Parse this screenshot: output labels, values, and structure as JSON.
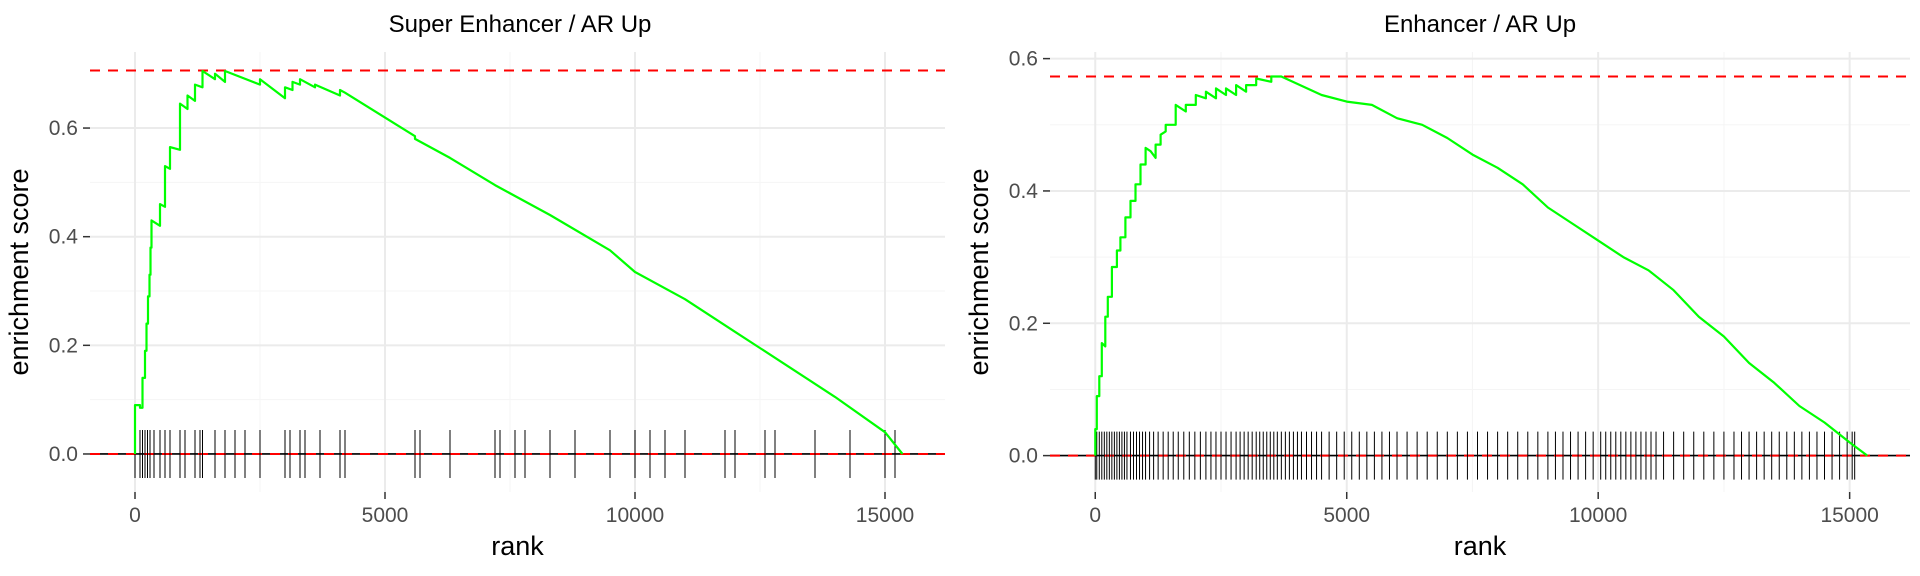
{
  "chart_data": [
    {
      "type": "line",
      "title": "Super Enhancer / AR Up",
      "xlabel": "rank",
      "ylabel": "enrichment score",
      "xlim": [
        -900,
        16200
      ],
      "ylim": [
        -0.07,
        0.74
      ],
      "xticks": [
        0,
        5000,
        10000,
        15000
      ],
      "xtick_labels": [
        "0",
        "5000",
        "10000",
        "15000"
      ],
      "yticks": [
        0.0,
        0.2,
        0.4,
        0.6
      ],
      "ytick_labels": [
        "0.0",
        "0.2",
        "0.4",
        "0.6"
      ],
      "grid": true,
      "max_es_line": 0.706,
      "line_color": "#00ff00",
      "ref_line_color": "#ff0000",
      "series": [
        {
          "points": [
            [
              0,
              0
            ],
            [
              0,
              0.09
            ],
            [
              100,
              0.09
            ],
            [
              100,
              0.085
            ],
            [
              150,
              0.085
            ],
            [
              150,
              0.14
            ],
            [
              200,
              0.14
            ],
            [
              200,
              0.19
            ],
            [
              230,
              0.19
            ],
            [
              230,
              0.24
            ],
            [
              260,
              0.24
            ],
            [
              260,
              0.29
            ],
            [
              290,
              0.29
            ],
            [
              290,
              0.33
            ],
            [
              310,
              0.33
            ],
            [
              310,
              0.38
            ],
            [
              330,
              0.38
            ],
            [
              330,
              0.43
            ],
            [
              500,
              0.42
            ],
            [
              500,
              0.46
            ],
            [
              600,
              0.455
            ],
            [
              600,
              0.53
            ],
            [
              700,
              0.525
            ],
            [
              700,
              0.565
            ],
            [
              900,
              0.56
            ],
            [
              900,
              0.645
            ],
            [
              1050,
              0.635
            ],
            [
              1050,
              0.66
            ],
            [
              1200,
              0.65
            ],
            [
              1200,
              0.68
            ],
            [
              1350,
              0.675
            ],
            [
              1350,
              0.705
            ],
            [
              1600,
              0.69
            ],
            [
              1600,
              0.7
            ],
            [
              1800,
              0.685
            ],
            [
              1800,
              0.705
            ],
            [
              2500,
              0.68
            ],
            [
              2500,
              0.69
            ],
            [
              3000,
              0.655
            ],
            [
              3000,
              0.675
            ],
            [
              3150,
              0.67
            ],
            [
              3150,
              0.685
            ],
            [
              3300,
              0.68
            ],
            [
              3300,
              0.69
            ],
            [
              3600,
              0.675
            ],
            [
              3600,
              0.68
            ],
            [
              4100,
              0.66
            ],
            [
              4100,
              0.67
            ],
            [
              4200,
              0.665
            ],
            [
              5600,
              0.585
            ],
            [
              5600,
              0.58
            ],
            [
              6300,
              0.545
            ],
            [
              7200,
              0.495
            ],
            [
              7600,
              0.475
            ],
            [
              8300,
              0.44
            ],
            [
              9500,
              0.375
            ],
            [
              10000,
              0.335
            ],
            [
              11000,
              0.285
            ],
            [
              12000,
              0.225
            ],
            [
              13000,
              0.165
            ],
            [
              14000,
              0.105
            ],
            [
              15000,
              0.04
            ],
            [
              15350,
              0
            ]
          ],
          "rug": [
            0,
            100,
            150,
            200,
            250,
            300,
            380,
            500,
            600,
            700,
            900,
            1000,
            1200,
            1300,
            1350,
            1600,
            1800,
            2000,
            2200,
            2500,
            3000,
            3100,
            3300,
            3400,
            3700,
            4100,
            4200,
            5600,
            5700,
            6300,
            7200,
            7300,
            7600,
            7800,
            8300,
            8800,
            9500,
            10000,
            10300,
            10600,
            11000,
            11800,
            12000,
            12600,
            12800,
            13600,
            14300,
            15000,
            15200
          ]
        }
      ]
    },
    {
      "type": "line",
      "title": "Enhancer / AR Up",
      "xlabel": "rank",
      "ylabel": "enrichment score",
      "xlim": [
        -900,
        16200
      ],
      "ylim": [
        -0.055,
        0.61
      ],
      "xticks": [
        0,
        5000,
        10000,
        15000
      ],
      "xtick_labels": [
        "0",
        "5000",
        "10000",
        "15000"
      ],
      "yticks": [
        0.0,
        0.2,
        0.4,
        0.6
      ],
      "ytick_labels": [
        "0.0",
        "0.2",
        "0.4",
        "0.6"
      ],
      "grid": true,
      "max_es_line": 0.573,
      "line_color": "#00ff00",
      "ref_line_color": "#ff0000",
      "series": [
        {
          "points": [
            [
              0,
              0
            ],
            [
              0,
              0.04
            ],
            [
              30,
              0.04
            ],
            [
              30,
              0.09
            ],
            [
              80,
              0.09
            ],
            [
              80,
              0.12
            ],
            [
              130,
              0.12
            ],
            [
              130,
              0.17
            ],
            [
              200,
              0.165
            ],
            [
              200,
              0.21
            ],
            [
              250,
              0.21
            ],
            [
              250,
              0.24
            ],
            [
              330,
              0.24
            ],
            [
              330,
              0.285
            ],
            [
              430,
              0.285
            ],
            [
              430,
              0.31
            ],
            [
              500,
              0.31
            ],
            [
              500,
              0.33
            ],
            [
              600,
              0.33
            ],
            [
              600,
              0.36
            ],
            [
              700,
              0.36
            ],
            [
              700,
              0.385
            ],
            [
              800,
              0.385
            ],
            [
              800,
              0.41
            ],
            [
              900,
              0.41
            ],
            [
              900,
              0.44
            ],
            [
              1000,
              0.44
            ],
            [
              1000,
              0.465
            ],
            [
              1100,
              0.46
            ],
            [
              1200,
              0.45
            ],
            [
              1200,
              0.47
            ],
            [
              1300,
              0.47
            ],
            [
              1300,
              0.485
            ],
            [
              1400,
              0.49
            ],
            [
              1400,
              0.5
            ],
            [
              1600,
              0.5
            ],
            [
              1600,
              0.53
            ],
            [
              1800,
              0.52
            ],
            [
              1800,
              0.53
            ],
            [
              2000,
              0.53
            ],
            [
              2000,
              0.545
            ],
            [
              2200,
              0.54
            ],
            [
              2200,
              0.55
            ],
            [
              2400,
              0.54
            ],
            [
              2400,
              0.555
            ],
            [
              2600,
              0.545
            ],
            [
              2600,
              0.555
            ],
            [
              2800,
              0.545
            ],
            [
              2800,
              0.56
            ],
            [
              3000,
              0.55
            ],
            [
              3000,
              0.56
            ],
            [
              3200,
              0.56
            ],
            [
              3200,
              0.57
            ],
            [
              3500,
              0.565
            ],
            [
              3500,
              0.573
            ],
            [
              3700,
              0.573
            ],
            [
              4500,
              0.545
            ],
            [
              5000,
              0.535
            ],
            [
              5500,
              0.53
            ],
            [
              6000,
              0.51
            ],
            [
              6500,
              0.5
            ],
            [
              7000,
              0.48
            ],
            [
              7500,
              0.455
            ],
            [
              8000,
              0.435
            ],
            [
              8500,
              0.41
            ],
            [
              9000,
              0.375
            ],
            [
              9500,
              0.35
            ],
            [
              10000,
              0.325
            ],
            [
              10500,
              0.3
            ],
            [
              11000,
              0.28
            ],
            [
              11500,
              0.25
            ],
            [
              12000,
              0.21
            ],
            [
              12500,
              0.18
            ],
            [
              13000,
              0.14
            ],
            [
              13500,
              0.11
            ],
            [
              14000,
              0.075
            ],
            [
              14500,
              0.05
            ],
            [
              15000,
              0.02
            ],
            [
              15350,
              0
            ]
          ],
          "rug": [
            0,
            30,
            80,
            130,
            180,
            230,
            280,
            330,
            380,
            430,
            480,
            530,
            580,
            630,
            700,
            760,
            820,
            880,
            940,
            1000,
            1080,
            1160,
            1250,
            1350,
            1450,
            1550,
            1650,
            1760,
            1870,
            1980,
            2090,
            2200,
            2300,
            2400,
            2500,
            2600,
            2700,
            2800,
            2880,
            2960,
            3040,
            3120,
            3200,
            3270,
            3340,
            3410,
            3480,
            3550,
            3620,
            3700,
            3780,
            3860,
            3940,
            4020,
            4100,
            4200,
            4300,
            4400,
            4500,
            4650,
            4800,
            4950,
            5100,
            5250,
            5400,
            5550,
            5700,
            5850,
            6000,
            6200,
            6400,
            6600,
            6800,
            7000,
            7200,
            7400,
            7600,
            7800,
            8000,
            8200,
            8400,
            8600,
            8800,
            9000,
            9150,
            9300,
            9450,
            9600,
            9750,
            9900,
            10050,
            10150,
            10250,
            10350,
            10450,
            10550,
            10650,
            10750,
            10850,
            10950,
            11050,
            11150,
            11300,
            11500,
            11700,
            11900,
            12100,
            12300,
            12500,
            12700,
            12850,
            13000,
            13150,
            13300,
            13450,
            13600,
            13750,
            13900,
            14050,
            14200,
            14350,
            14500,
            14650,
            14800,
            14950,
            15050,
            15100
          ]
        }
      ]
    }
  ]
}
